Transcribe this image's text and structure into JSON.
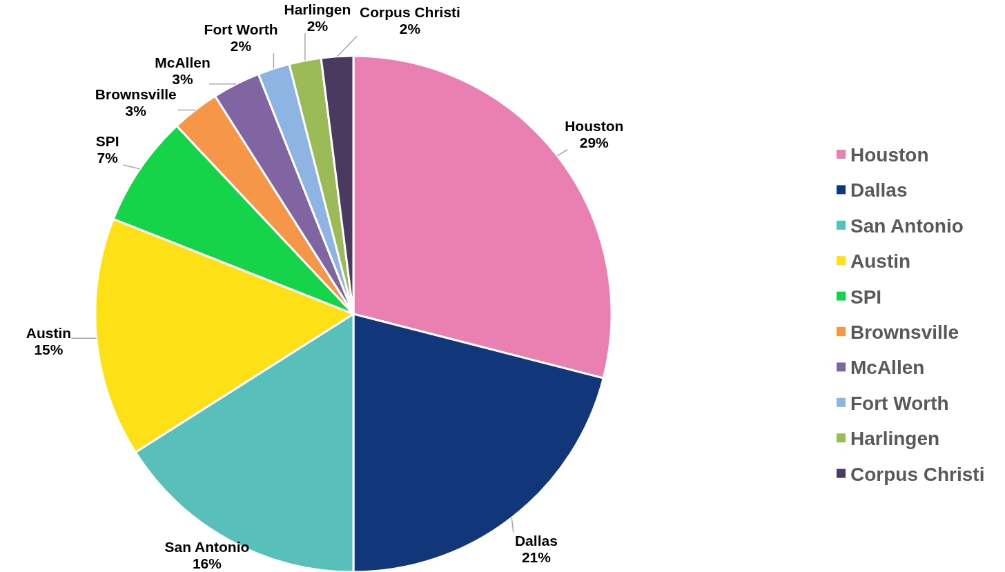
{
  "chart_data": {
    "type": "pie",
    "categories": [
      "Houston",
      "Dallas",
      "San Antonio",
      "Austin",
      "SPI",
      "Brownsville",
      "McAllen",
      "Fort Worth",
      "Harlingen",
      "Corpus Christi"
    ],
    "values": [
      29,
      21,
      16,
      15,
      7,
      3,
      3,
      2,
      2,
      2
    ],
    "colors": [
      "#ea7fb1",
      "#12367a",
      "#58bfba",
      "#fde015",
      "#15d44a",
      "#f69648",
      "#8065a2",
      "#8db4e2",
      "#9bbb59",
      "#4a3961"
    ],
    "value_labels": [
      "29%",
      "21%",
      "16%",
      "15%",
      "7%",
      "3%",
      "3%",
      "2%",
      "2%",
      "2%"
    ],
    "legend": "right"
  }
}
